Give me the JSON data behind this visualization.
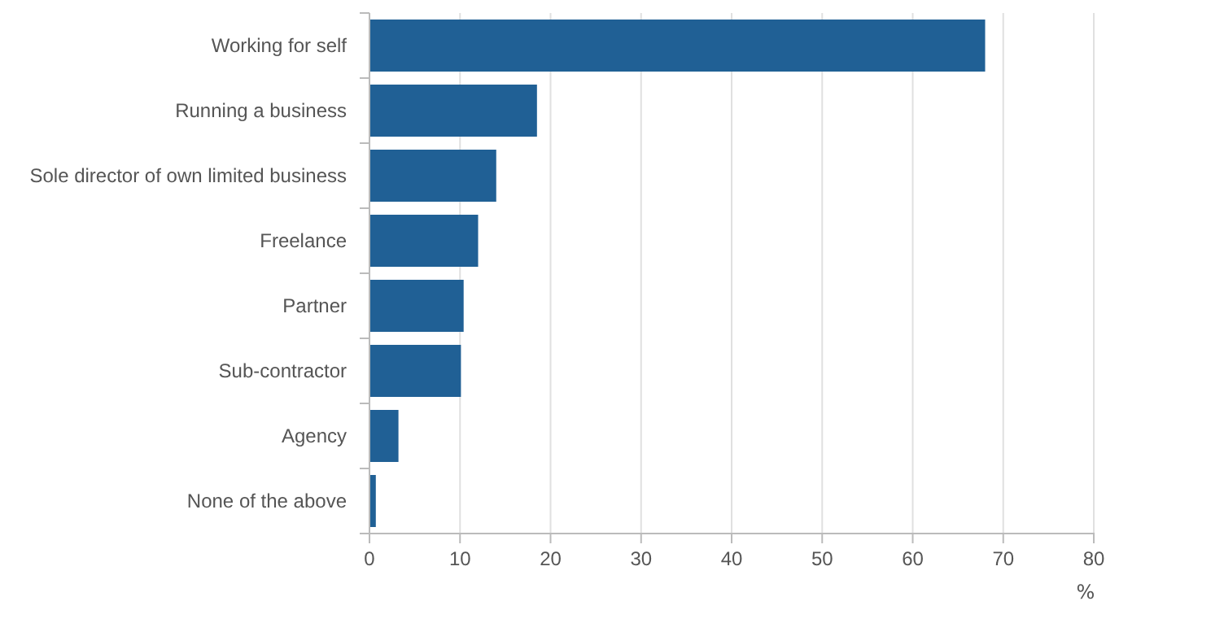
{
  "chart_data": {
    "type": "bar",
    "orientation": "horizontal",
    "categories": [
      "Working for self",
      "Running a business",
      "Sole director of own limited business",
      "Freelance",
      "Partner",
      "Sub-contractor",
      "Agency",
      "None of the above"
    ],
    "values": [
      68,
      18.5,
      14,
      12,
      10.4,
      10.1,
      3.2,
      0.7
    ],
    "color": "#206095",
    "xlim": [
      0,
      80
    ],
    "xticks": [
      0,
      10,
      20,
      30,
      40,
      50,
      60,
      70,
      80
    ],
    "xlabel": "%",
    "grid": "x"
  }
}
